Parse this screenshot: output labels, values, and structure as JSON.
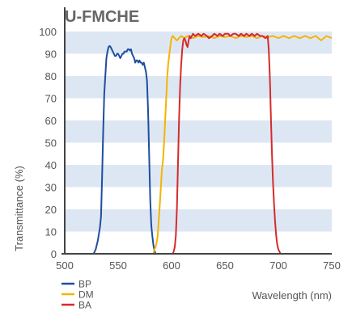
{
  "chart_data": {
    "type": "line",
    "title": "U-FMCHE",
    "xlabel": "Wavelength (nm)",
    "ylabel": "Transmittance (%)",
    "xlim": [
      500,
      750
    ],
    "ylim": [
      0,
      100
    ],
    "x_ticks": [
      500,
      550,
      600,
      650,
      700,
      750
    ],
    "y_ticks": [
      0,
      10,
      20,
      30,
      40,
      50,
      60,
      70,
      80,
      90,
      100
    ],
    "grid": "alternating horizontal bands",
    "legend_position": "bottom-left",
    "colors": {
      "band": "#dde7f4",
      "axis": "#444444",
      "text": "#555555",
      "title": "#666666"
    },
    "series": [
      {
        "name": "BP",
        "color": "#1f4e9e",
        "points": [
          [
            500,
            0
          ],
          [
            527,
            0
          ],
          [
            529,
            2
          ],
          [
            531,
            6
          ],
          [
            533,
            12
          ],
          [
            534,
            17
          ],
          [
            535,
            35
          ],
          [
            536,
            55
          ],
          [
            537,
            72
          ],
          [
            538,
            80
          ],
          [
            539,
            88
          ],
          [
            540,
            91
          ],
          [
            541,
            93
          ],
          [
            542,
            93.5
          ],
          [
            543,
            93
          ],
          [
            544,
            92
          ],
          [
            545,
            91
          ],
          [
            546,
            90
          ],
          [
            547,
            89
          ],
          [
            548,
            89
          ],
          [
            549,
            90
          ],
          [
            550,
            90
          ],
          [
            551,
            89
          ],
          [
            552,
            88
          ],
          [
            553,
            89
          ],
          [
            554,
            90
          ],
          [
            555,
            90
          ],
          [
            556,
            91
          ],
          [
            557,
            91
          ],
          [
            558,
            91
          ],
          [
            559,
            92
          ],
          [
            560,
            92
          ],
          [
            561,
            91.5
          ],
          [
            562,
            92
          ],
          [
            563,
            90
          ],
          [
            564,
            89
          ],
          [
            565,
            88
          ],
          [
            566,
            86
          ],
          [
            567,
            87
          ],
          [
            568,
            87
          ],
          [
            569,
            86
          ],
          [
            570,
            87
          ],
          [
            571,
            86
          ],
          [
            572,
            86
          ],
          [
            573,
            85
          ],
          [
            574,
            86
          ],
          [
            575,
            84
          ],
          [
            576,
            82
          ],
          [
            577,
            78
          ],
          [
            578,
            65
          ],
          [
            579,
            45
          ],
          [
            580,
            25
          ],
          [
            581,
            13
          ],
          [
            582,
            8
          ],
          [
            583,
            4
          ],
          [
            584,
            1.5
          ],
          [
            585,
            0
          ],
          [
            750,
            0
          ]
        ]
      },
      {
        "name": "DM",
        "color": "#f5b400",
        "points": [
          [
            500,
            0
          ],
          [
            583,
            0
          ],
          [
            584,
            2
          ],
          [
            585,
            3
          ],
          [
            586,
            5
          ],
          [
            587,
            8
          ],
          [
            588,
            15
          ],
          [
            589,
            22
          ],
          [
            590,
            30
          ],
          [
            591,
            38
          ],
          [
            592,
            42
          ],
          [
            593,
            50
          ],
          [
            594,
            60
          ],
          [
            595,
            70
          ],
          [
            596,
            80
          ],
          [
            597,
            86
          ],
          [
            598,
            90
          ],
          [
            599,
            94
          ],
          [
            600,
            97
          ],
          [
            601,
            98
          ],
          [
            603,
            97
          ],
          [
            605,
            96
          ],
          [
            607,
            97
          ],
          [
            609,
            98
          ],
          [
            612,
            97
          ],
          [
            615,
            98
          ],
          [
            620,
            97
          ],
          [
            625,
            98
          ],
          [
            630,
            97.5
          ],
          [
            635,
            98
          ],
          [
            640,
            97
          ],
          [
            645,
            98
          ],
          [
            650,
            97.5
          ],
          [
            655,
            98
          ],
          [
            660,
            97
          ],
          [
            665,
            98
          ],
          [
            670,
            97.5
          ],
          [
            675,
            98
          ],
          [
            680,
            97
          ],
          [
            685,
            98
          ],
          [
            690,
            97.5
          ],
          [
            695,
            98
          ],
          [
            700,
            97
          ],
          [
            705,
            98
          ],
          [
            710,
            97
          ],
          [
            715,
            98
          ],
          [
            720,
            97
          ],
          [
            725,
            98
          ],
          [
            730,
            97
          ],
          [
            735,
            98
          ],
          [
            740,
            96
          ],
          [
            745,
            98
          ],
          [
            750,
            97
          ]
        ]
      },
      {
        "name": "BA",
        "color": "#d62b2b",
        "points": [
          [
            500,
            0
          ],
          [
            601,
            0
          ],
          [
            602,
            1
          ],
          [
            603,
            3
          ],
          [
            604,
            8
          ],
          [
            605,
            20
          ],
          [
            606,
            40
          ],
          [
            607,
            60
          ],
          [
            608,
            75
          ],
          [
            609,
            85
          ],
          [
            610,
            92
          ],
          [
            611,
            96
          ],
          [
            612,
            97
          ],
          [
            613,
            96
          ],
          [
            614,
            94
          ],
          [
            615,
            93
          ],
          [
            616,
            96
          ],
          [
            617,
            98
          ],
          [
            618,
            97
          ],
          [
            620,
            99
          ],
          [
            622,
            98
          ],
          [
            625,
            99
          ],
          [
            628,
            98
          ],
          [
            630,
            99
          ],
          [
            633,
            98
          ],
          [
            635,
            97
          ],
          [
            638,
            98
          ],
          [
            640,
            99
          ],
          [
            643,
            98
          ],
          [
            645,
            99
          ],
          [
            648,
            98
          ],
          [
            650,
            99
          ],
          [
            653,
            99
          ],
          [
            655,
            98
          ],
          [
            658,
            99
          ],
          [
            660,
            99
          ],
          [
            663,
            98
          ],
          [
            665,
            99
          ],
          [
            668,
            98
          ],
          [
            670,
            99
          ],
          [
            673,
            98
          ],
          [
            675,
            99
          ],
          [
            678,
            98
          ],
          [
            680,
            99
          ],
          [
            683,
            98
          ],
          [
            685,
            98
          ],
          [
            688,
            97
          ],
          [
            690,
            98
          ],
          [
            691,
            92
          ],
          [
            692,
            80
          ],
          [
            693,
            62
          ],
          [
            694,
            45
          ],
          [
            695,
            32
          ],
          [
            696,
            22
          ],
          [
            697,
            14
          ],
          [
            698,
            8
          ],
          [
            699,
            4
          ],
          [
            700,
            2
          ],
          [
            701,
            1
          ],
          [
            702,
            0
          ],
          [
            750,
            0
          ]
        ]
      }
    ]
  }
}
